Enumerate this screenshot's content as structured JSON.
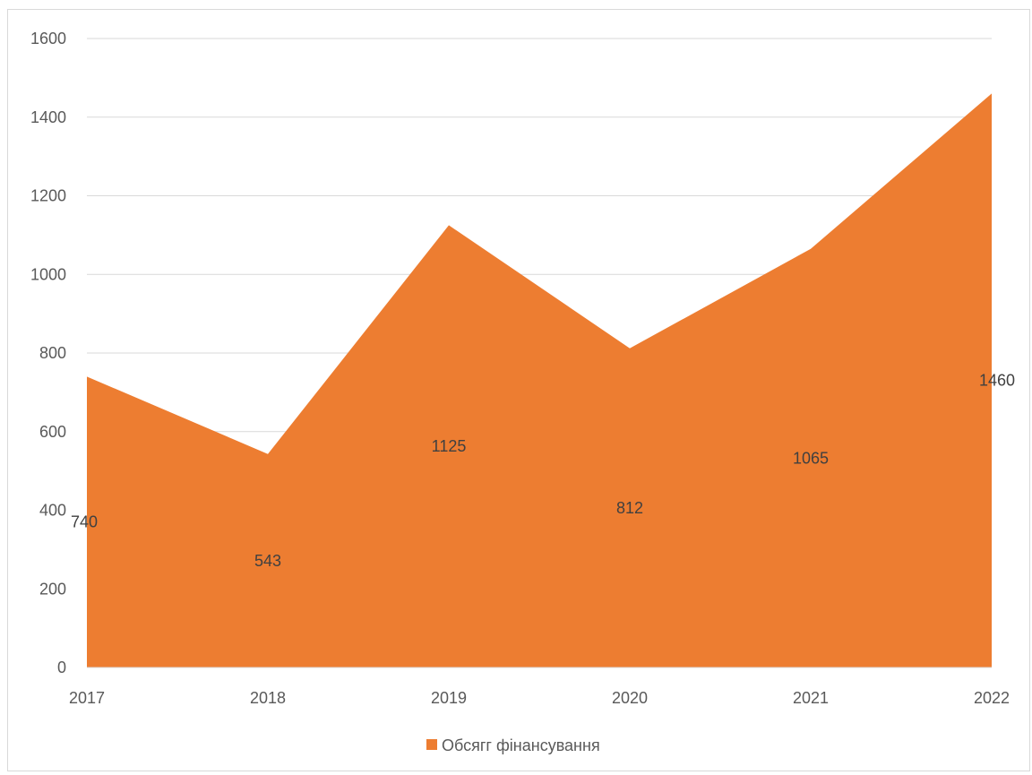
{
  "chart_data": {
    "type": "area",
    "categories": [
      "2017",
      "2018",
      "2019",
      "2020",
      "2021",
      "2022"
    ],
    "series": [
      {
        "name": "Обсягг фінансування",
        "values": [
          740,
          543,
          1125,
          812,
          1065,
          1460
        ],
        "color": "#ED7D31"
      }
    ],
    "ylim": [
      0,
      1600
    ],
    "yticks": [
      0,
      200,
      400,
      600,
      800,
      1000,
      1200,
      1400,
      1600
    ],
    "grid": true,
    "legend": "bottom",
    "data_labels": true
  }
}
